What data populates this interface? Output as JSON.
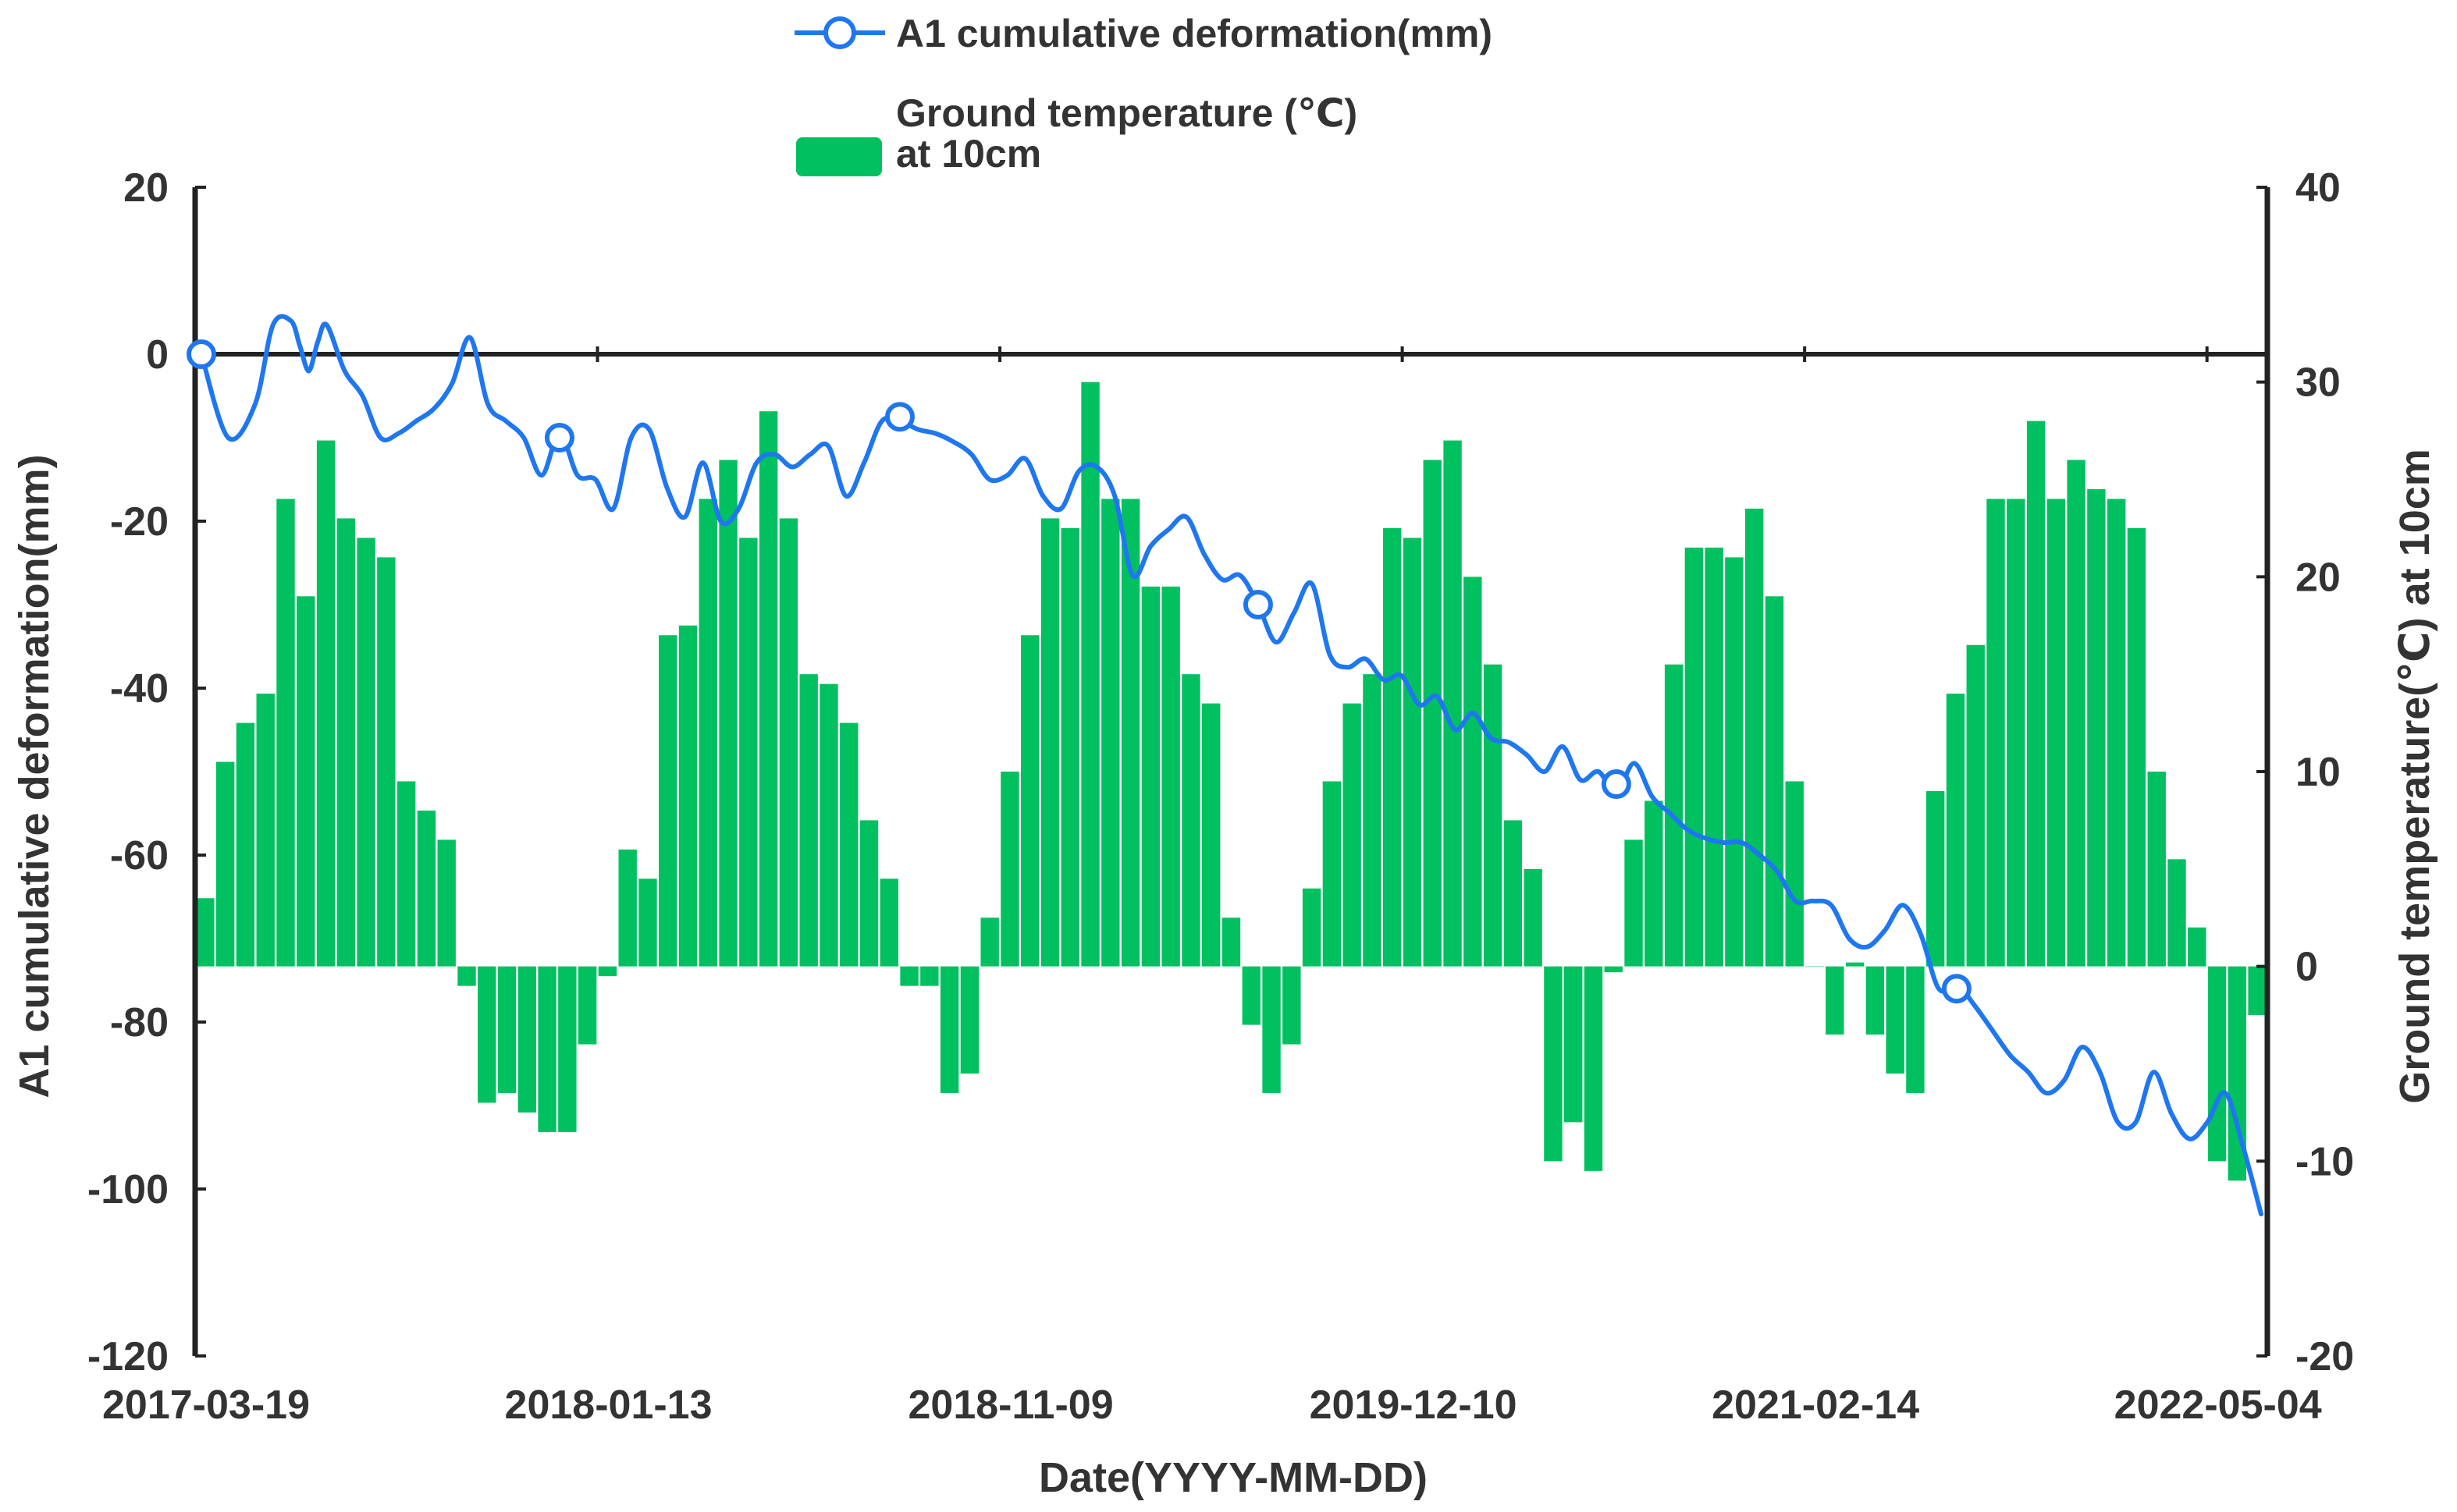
{
  "chart_data": {
    "type": "bar+line",
    "xlabel": "Date(YYYY-MM-DD)",
    "ylabel_left": "A1 cumulative deformation(mm)",
    "ylabel_right": "Ground temperature(℃) at 10cm",
    "ylim_left": [
      -120,
      20
    ],
    "ylim_right": [
      -20,
      40
    ],
    "yticks_left": [
      20,
      0,
      -20,
      -40,
      -60,
      -80,
      -100,
      -120
    ],
    "yticks_right": [
      40,
      30,
      20,
      10,
      0,
      -10,
      -20
    ],
    "xtick_labels": [
      "2017-03-19",
      "2018-01-13",
      "2018-11-09",
      "2019-12-10",
      "2021-02-14",
      "2022-05-04"
    ],
    "legend": {
      "line_label": "A1 cumulative deformation(mm)",
      "bar_label_line1": "Ground temperature (℃)",
      "bar_label_line2": "at 10cm",
      "placement": "top-center"
    },
    "colors": {
      "line": "#1f77f0",
      "bar": "#00c060",
      "axis": "#222222",
      "text": "#333333"
    },
    "time_range_index": [
      0,
      100
    ],
    "bar_series": {
      "name": "Ground temperature at 10cm",
      "values": [
        3.5,
        10.5,
        12.5,
        14.0,
        24.0,
        19.0,
        27.0,
        23.0,
        22.0,
        21.0,
        9.5,
        8.0,
        6.5,
        -1.0,
        -7.0,
        -6.5,
        -7.5,
        -8.5,
        -8.5,
        -4.0,
        -0.5,
        6.0,
        4.5,
        17.0,
        17.5,
        24.0,
        26.0,
        22.0,
        28.5,
        23.0,
        15.0,
        14.5,
        12.5,
        7.5,
        4.5,
        -1.0,
        -1.0,
        -6.5,
        -5.5,
        2.5,
        10.0,
        17.0,
        23.0,
        22.5,
        30.0,
        24.0,
        24.0,
        19.5,
        19.5,
        15.0,
        13.5,
        2.5,
        -3.0,
        -6.5,
        -4.0,
        4.0,
        9.5,
        13.5,
        15.0,
        22.5,
        22.0,
        26.0,
        27.0,
        20.0,
        15.5,
        7.5,
        5.0,
        -10.0,
        -8.0,
        -10.5,
        -0.3,
        6.5,
        8.5,
        15.5,
        21.5,
        21.5,
        21.0,
        23.5,
        19.0,
        9.5,
        0,
        -3.5,
        0.2,
        -3.5,
        -5.5,
        -6.5,
        9.0,
        14.0,
        16.5,
        24.0,
        24.0,
        28.0,
        24.0,
        26.0,
        24.5,
        24.0,
        22.5,
        10.0,
        5.5,
        2.0,
        -10.0,
        -11.0,
        -2.5
      ]
    },
    "line_series": {
      "name": "A1 cumulative deformation",
      "points": [
        [
          0,
          0
        ],
        [
          1.5,
          -10
        ],
        [
          3,
          -6
        ],
        [
          4,
          3.5
        ],
        [
          5,
          4
        ],
        [
          5.5,
          1
        ],
        [
          6,
          -2
        ],
        [
          6.5,
          1.5
        ],
        [
          7,
          3.5
        ],
        [
          8,
          -2
        ],
        [
          9,
          -5
        ],
        [
          10,
          -10
        ],
        [
          11,
          -9.5
        ],
        [
          12,
          -8
        ],
        [
          13,
          -6.5
        ],
        [
          14,
          -3.5
        ],
        [
          15,
          2
        ],
        [
          16,
          -6
        ],
        [
          17,
          -8
        ],
        [
          18,
          -10
        ],
        [
          19,
          -14.5
        ],
        [
          20,
          -9.5
        ],
        [
          21,
          -14.5
        ],
        [
          22,
          -15
        ],
        [
          23,
          -18.5
        ],
        [
          24,
          -10
        ],
        [
          25,
          -9
        ],
        [
          26,
          -16
        ],
        [
          27,
          -19.5
        ],
        [
          28,
          -13
        ],
        [
          29,
          -20
        ],
        [
          30,
          -18.5
        ],
        [
          31,
          -13
        ],
        [
          32,
          -12
        ],
        [
          33,
          -13.5
        ],
        [
          34,
          -12
        ],
        [
          35,
          -11
        ],
        [
          36,
          -17
        ],
        [
          37,
          -13
        ],
        [
          38,
          -8
        ],
        [
          39,
          -8
        ],
        [
          40,
          -9
        ],
        [
          41,
          -9.5
        ],
        [
          42,
          -10.5
        ],
        [
          43,
          -12
        ],
        [
          44,
          -15
        ],
        [
          45,
          -14.5
        ],
        [
          46,
          -12.5
        ],
        [
          47,
          -17
        ],
        [
          48,
          -18.5
        ],
        [
          49,
          -14
        ],
        [
          50,
          -13.5
        ],
        [
          51,
          -17
        ],
        [
          52,
          -26.5
        ],
        [
          53,
          -23
        ],
        [
          54,
          -21
        ],
        [
          55,
          -19.5
        ],
        [
          56,
          -24
        ],
        [
          57,
          -27
        ],
        [
          58,
          -26.5
        ],
        [
          59,
          -30
        ],
        [
          60,
          -34.5
        ],
        [
          61,
          -31
        ],
        [
          62,
          -27.5
        ],
        [
          63,
          -36
        ],
        [
          64,
          -37.5
        ],
        [
          65,
          -36.5
        ],
        [
          66,
          -39
        ],
        [
          67,
          -38.5
        ],
        [
          68,
          -42
        ],
        [
          69,
          -41
        ],
        [
          70,
          -45
        ],
        [
          71,
          -43
        ],
        [
          72,
          -46
        ],
        [
          73,
          -46.5
        ],
        [
          74,
          -48
        ],
        [
          75,
          -50
        ],
        [
          76,
          -47
        ],
        [
          77,
          -51
        ],
        [
          78,
          -50
        ],
        [
          79,
          -52.5
        ],
        [
          80,
          -49
        ],
        [
          81,
          -53
        ],
        [
          82,
          -55
        ],
        [
          83,
          -57
        ],
        [
          84,
          -58
        ],
        [
          85,
          -58.5
        ],
        [
          86,
          -58.5
        ],
        [
          87,
          -60
        ],
        [
          88,
          -62
        ],
        [
          89,
          -65.5
        ],
        [
          90,
          -65.5
        ],
        [
          91,
          -66
        ],
        [
          92,
          -70
        ],
        [
          93,
          -71
        ],
        [
          94,
          -69
        ],
        [
          95,
          -66
        ],
        [
          96,
          -69.5
        ],
        [
          97,
          -76
        ],
        [
          98,
          -75.5
        ],
        [
          99,
          -78
        ],
        [
          100,
          -81
        ],
        [
          101,
          -84
        ],
        [
          102,
          -86
        ],
        [
          103,
          -88.5
        ],
        [
          104,
          -87
        ],
        [
          105,
          -83
        ],
        [
          106,
          -86
        ],
        [
          107,
          -92
        ],
        [
          108,
          -92
        ],
        [
          109,
          -86
        ],
        [
          110,
          -91
        ],
        [
          111,
          -94
        ],
        [
          112,
          -92
        ],
        [
          113,
          -88.5
        ],
        [
          114,
          -95
        ],
        [
          115,
          -103
        ]
      ],
      "line_x_range": [
        0,
        115
      ],
      "marker_points": [
        [
          0,
          0
        ],
        [
          20,
          -10
        ],
        [
          39,
          -7.5
        ],
        [
          59,
          -30
        ],
        [
          79,
          -51.5
        ],
        [
          98,
          -76
        ]
      ]
    }
  }
}
